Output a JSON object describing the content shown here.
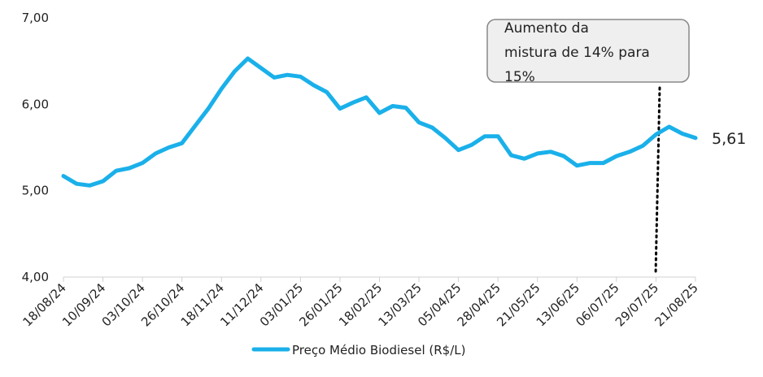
{
  "chart_data": {
    "type": "line",
    "categories": [
      "18/08/24",
      null,
      null,
      "10/09/24",
      null,
      null,
      "03/10/24",
      null,
      null,
      "26/10/24",
      null,
      null,
      "18/11/24",
      null,
      null,
      "11/12/24",
      null,
      null,
      "03/01/25",
      null,
      null,
      "26/01/25",
      null,
      null,
      "18/02/25",
      null,
      null,
      "13/03/25",
      null,
      null,
      "05/04/25",
      null,
      null,
      "28/04/25",
      null,
      null,
      "21/05/25",
      null,
      null,
      "13/06/25",
      null,
      null,
      "06/07/25",
      null,
      null,
      "29/07/25",
      null,
      null,
      "21/08/25"
    ],
    "series": [
      {
        "name": "Preço Médio Biodiesel (R$/L)",
        "color": "#1ab0ea",
        "values": [
          5.17,
          5.08,
          5.06,
          5.11,
          5.23,
          5.26,
          5.32,
          5.43,
          5.5,
          5.55,
          5.75,
          5.95,
          6.18,
          6.38,
          6.53,
          6.42,
          6.31,
          6.34,
          6.32,
          6.22,
          6.14,
          5.95,
          6.02,
          6.08,
          5.9,
          5.98,
          5.96,
          5.79,
          5.73,
          5.61,
          5.47,
          5.53,
          5.63,
          5.63,
          5.41,
          5.37,
          5.43,
          5.45,
          5.4,
          5.29,
          5.32,
          5.32,
          5.4,
          5.45,
          5.52,
          5.65,
          5.74,
          5.66,
          5.61
        ],
        "value_labels": [
          null,
          null,
          null,
          null,
          null,
          null,
          null,
          null,
          null,
          null,
          null,
          null,
          null,
          null,
          null,
          null,
          null,
          null,
          null,
          null,
          null,
          null,
          null,
          null,
          null,
          null,
          null,
          null,
          null,
          null,
          null,
          null,
          null,
          null,
          null,
          null,
          null,
          null,
          null,
          null,
          null,
          null,
          null,
          null,
          null,
          null,
          null,
          null,
          "5,61"
        ]
      }
    ],
    "ylim": [
      4,
      7
    ],
    "yticks": [
      {
        "value": 4,
        "label": "4,00"
      },
      {
        "value": 5,
        "label": "5,00"
      },
      {
        "value": 6,
        "label": "6,00"
      },
      {
        "value": 7,
        "label": "7,00"
      }
    ],
    "annotation": [
      "Aumento da",
      "mistura de 14% para",
      "15%"
    ],
    "legend": "bottom"
  }
}
